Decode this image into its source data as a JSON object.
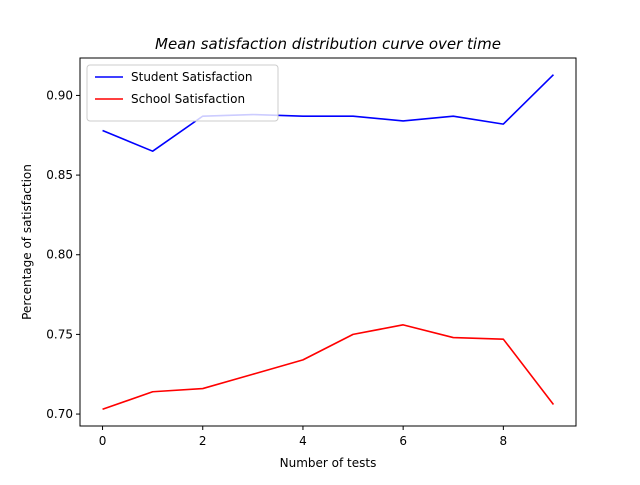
{
  "chart_data": {
    "type": "line",
    "title": "Mean satisfaction distribution curve over time",
    "xlabel": "Number of tests",
    "ylabel": "Percentage of satisfaction",
    "x": [
      0,
      1,
      2,
      3,
      4,
      5,
      6,
      7,
      8,
      9
    ],
    "xlim": [
      -0.45,
      9.45
    ],
    "ylim": [
      0.6925,
      0.9235
    ],
    "xticks": [
      0,
      2,
      4,
      6,
      8
    ],
    "xtick_labels": [
      "0",
      "2",
      "4",
      "6",
      "8"
    ],
    "yticks": [
      0.7,
      0.75,
      0.8,
      0.85,
      0.9
    ],
    "ytick_labels": [
      "0.70",
      "0.75",
      "0.80",
      "0.85",
      "0.90"
    ],
    "grid": false,
    "legend_position": "top-left",
    "series": [
      {
        "name": "Student Satisfaction",
        "color": "#0000ff",
        "values": [
          0.878,
          0.865,
          0.887,
          0.888,
          0.887,
          0.887,
          0.884,
          0.887,
          0.882,
          0.913
        ]
      },
      {
        "name": "School Satisfaction",
        "color": "#ff0000",
        "values": [
          0.703,
          0.714,
          0.716,
          0.725,
          0.734,
          0.75,
          0.756,
          0.748,
          0.747,
          0.706
        ]
      }
    ]
  }
}
